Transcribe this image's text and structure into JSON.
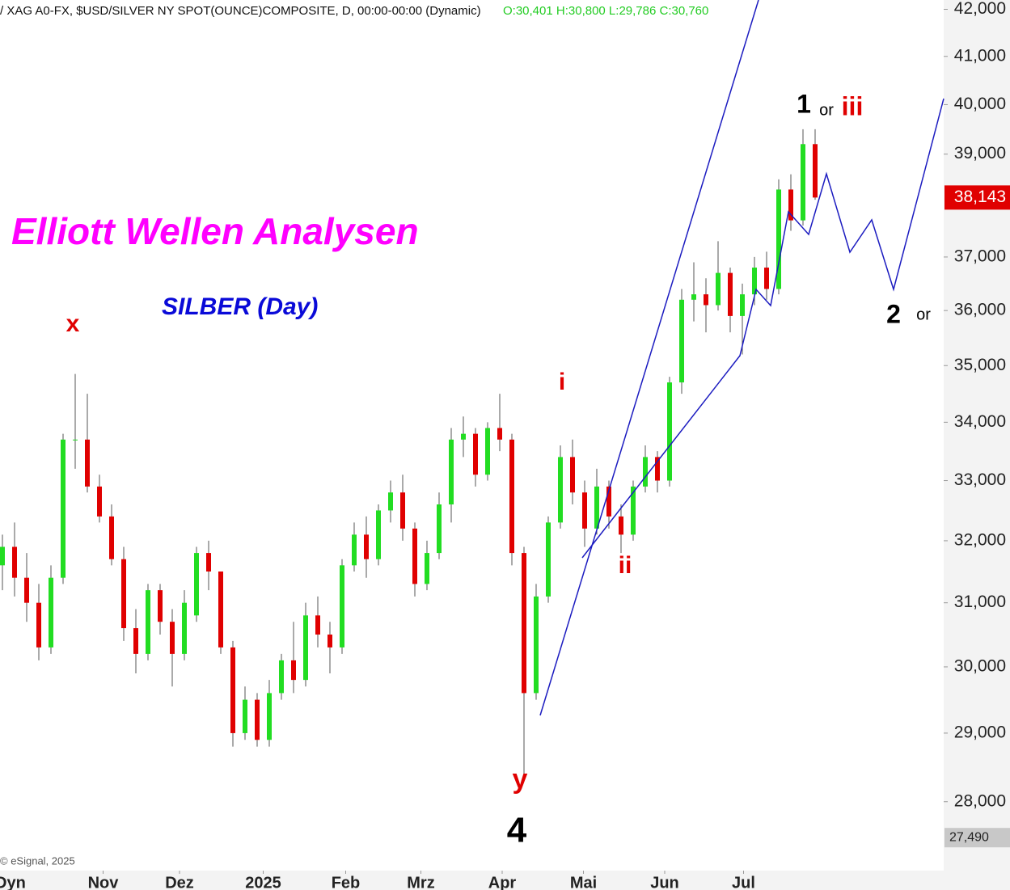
{
  "chart_data": {
    "type": "candlestick",
    "header": "/ XAG A0-FX, $USD/SILVER NY SPOT(OUNCE)COMPOSITE, D, 00:00-00:00 (Dynamic)",
    "header_ohlc": "O:30,401 H:30,800 L:29,786 C:30,760",
    "title": "Elliott Wellen Analysen",
    "subtitle": "SILBER (Day)",
    "annotations": [
      "x",
      "y",
      "4",
      "i",
      "ii",
      "1",
      "or",
      "iii",
      "2",
      "or"
    ],
    "copyright": "© eSignal, 2025",
    "corner_label": "Dyn",
    "log_scale": true,
    "up_color": "#22dd22",
    "down_color": "#e00000",
    "ylim": [
      27030,
      42200
    ],
    "yticks": [
      {
        "value": 28000,
        "label": "28,000"
      },
      {
        "value": 29000,
        "label": "29,000"
      },
      {
        "value": 30000,
        "label": "30,000"
      },
      {
        "value": 31000,
        "label": "31,000"
      },
      {
        "value": 32000,
        "label": "32,000"
      },
      {
        "value": 33000,
        "label": "33,000"
      },
      {
        "value": 34000,
        "label": "34,000"
      },
      {
        "value": 35000,
        "label": "35,000"
      },
      {
        "value": 36000,
        "label": "36,000"
      },
      {
        "value": 37000,
        "label": "37,000"
      },
      {
        "value": 39000,
        "label": "39,000"
      },
      {
        "value": 40000,
        "label": "40,000"
      },
      {
        "value": 41000,
        "label": "41,000"
      },
      {
        "value": 42000,
        "label": "42,000"
      }
    ],
    "last_price": {
      "value": 38143,
      "label": "38,143"
    },
    "low_marker": {
      "value": 27490,
      "label": "27,490"
    },
    "xlim": [
      -0.2,
      77.6
    ],
    "xticks": [
      {
        "value": 8.3,
        "label": "Nov"
      },
      {
        "value": 14.6,
        "label": "Dez"
      },
      {
        "value": 21.5,
        "label": "2025"
      },
      {
        "value": 28.3,
        "label": "Feb"
      },
      {
        "value": 34.5,
        "label": "Mrz"
      },
      {
        "value": 41.2,
        "label": "Apr"
      },
      {
        "value": 47.9,
        "label": "Mai"
      },
      {
        "value": 54.6,
        "label": "Jun"
      },
      {
        "value": 61.1,
        "label": "Jul"
      }
    ],
    "open": [
      31600,
      31900,
      31400,
      31000,
      30300,
      31400,
      33700,
      33700,
      32900,
      32400,
      31700,
      30600,
      30200,
      31200,
      30700,
      30200,
      30800,
      31800,
      31500,
      30300,
      29000,
      29500,
      28900,
      29600,
      30100,
      29800,
      30800,
      30500,
      30300,
      31600,
      32100,
      31700,
      32500,
      32800,
      32200,
      31300,
      31800,
      32600,
      33700,
      33800,
      33100,
      33900,
      33700,
      31800,
      29600,
      31100,
      32300,
      33400,
      32800,
      32200,
      32900,
      32400,
      32100,
      32900,
      33400,
      33000,
      34700,
      36200,
      36300,
      36100,
      36700,
      35900,
      36300,
      36800,
      36400,
      38300,
      37700,
      39200
    ],
    "high": [
      32100,
      32300,
      31800,
      31300,
      31600,
      33800,
      34850,
      34500,
      33100,
      32600,
      31900,
      30900,
      31300,
      31300,
      30900,
      31200,
      31900,
      32000,
      31500,
      30400,
      29700,
      29600,
      29800,
      30200,
      30700,
      31000,
      31100,
      30700,
      31700,
      32300,
      32400,
      32600,
      33000,
      33100,
      32300,
      32000,
      32800,
      33900,
      34100,
      33900,
      34000,
      34500,
      33800,
      31900,
      31300,
      32400,
      33600,
      33700,
      33000,
      33200,
      33000,
      32600,
      33000,
      33600,
      33500,
      34800,
      36400,
      36900,
      36600,
      37300,
      36800,
      36500,
      37000,
      37100,
      38500,
      38600,
      39500,
      39500
    ],
    "low": [
      31200,
      31100,
      30700,
      30100,
      30200,
      31300,
      33200,
      32800,
      32300,
      31600,
      30400,
      29900,
      30100,
      30500,
      29700,
      30100,
      30700,
      31200,
      30200,
      28800,
      28900,
      28800,
      28800,
      29500,
      29600,
      29700,
      30300,
      29900,
      30200,
      31500,
      31400,
      31600,
      32300,
      32000,
      31100,
      31200,
      31700,
      32300,
      33400,
      32900,
      33000,
      33500,
      31600,
      28350,
      29500,
      31000,
      32200,
      32600,
      31900,
      32100,
      32200,
      31800,
      32000,
      32800,
      32800,
      32900,
      34500,
      35800,
      35600,
      36000,
      35600,
      35200,
      36100,
      36200,
      36300,
      37500,
      37600,
      38100
    ],
    "close": [
      31900,
      31400,
      31000,
      30300,
      31400,
      33700,
      33700,
      32900,
      32400,
      31700,
      30600,
      30200,
      31200,
      30700,
      30200,
      31000,
      31800,
      31500,
      30300,
      29000,
      29500,
      28900,
      29600,
      30100,
      29800,
      30800,
      30500,
      30300,
      31600,
      32100,
      31700,
      32500,
      32800,
      32200,
      31300,
      31800,
      32600,
      33700,
      33800,
      33100,
      33900,
      33700,
      31800,
      29600,
      31100,
      32300,
      33400,
      32800,
      32200,
      32900,
      32400,
      32100,
      32900,
      33400,
      33000,
      34700,
      36200,
      36300,
      36100,
      36700,
      35900,
      36300,
      36800,
      36400,
      38300,
      37700,
      39200,
      38143
    ]
  }
}
